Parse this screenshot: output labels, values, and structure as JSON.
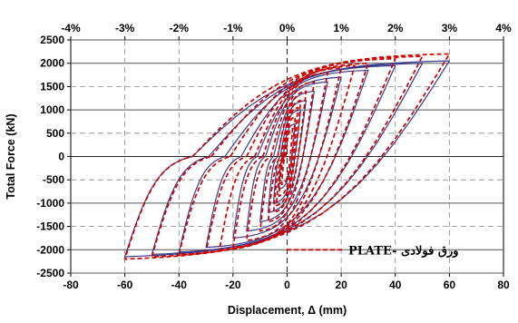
{
  "chart_data": {
    "type": "line",
    "xlabel": "Displacement, Δ (mm)",
    "ylabel": "Total Force (kN)",
    "xlim": [
      -80,
      80
    ],
    "ylim": [
      -2500,
      2500
    ],
    "x_ticks": [
      "-80",
      "-60",
      "-40",
      "-20",
      "0",
      "20",
      "40",
      "60",
      "80"
    ],
    "y_ticks": [
      "2500",
      "2000",
      "1500",
      "1000",
      "500",
      "0",
      "-500",
      "-1000",
      "-1500",
      "-2000",
      "-2500"
    ],
    "top_axis_ticks": [
      "-4%",
      "-3%",
      "-2%",
      "-1%",
      "0%",
      "1%",
      "2%",
      "3%",
      "4%"
    ],
    "grid": true,
    "legend_position": "bottom-right",
    "series": [
      {
        "name": "",
        "style": "solid",
        "color": "#3a3a8c",
        "amplitudes": [
          3,
          5,
          7,
          10,
          15,
          20,
          30,
          40,
          50,
          60
        ],
        "peak_force_pos": [
          700,
          1000,
          1200,
          1400,
          1600,
          1700,
          1850,
          1950,
          2000,
          2050
        ],
        "peak_force_neg": [
          -700,
          -1000,
          -1200,
          -1400,
          -1600,
          -1750,
          -1950,
          -2050,
          -2100,
          -2150
        ],
        "zero_force_displacement": [
          1.5,
          2.5,
          3.5,
          5,
          8,
          11,
          17,
          23,
          29,
          35
        ]
      },
      {
        "name": "PLATE- ورق فولادی",
        "style": "dashed",
        "color": "#cc0000",
        "amplitudes": [
          2,
          3,
          4,
          5,
          7,
          10,
          15,
          20,
          25,
          30,
          40,
          50,
          60
        ],
        "peak_force_pos": [
          600,
          850,
          1050,
          1200,
          1400,
          1600,
          1800,
          1900,
          1950,
          2000,
          2100,
          2150,
          2200
        ],
        "peak_force_neg": [
          -600,
          -850,
          -1050,
          -1200,
          -1400,
          -1600,
          -1800,
          -1950,
          -2000,
          -2050,
          -2100,
          -2150,
          -2200
        ],
        "zero_force_displacement": [
          0.5,
          0.8,
          1.0,
          1.3,
          2.0,
          3.5,
          6,
          9,
          12,
          15,
          21,
          28,
          35
        ]
      }
    ]
  },
  "legend": {
    "label": "PLATE- ورق فولادی"
  }
}
